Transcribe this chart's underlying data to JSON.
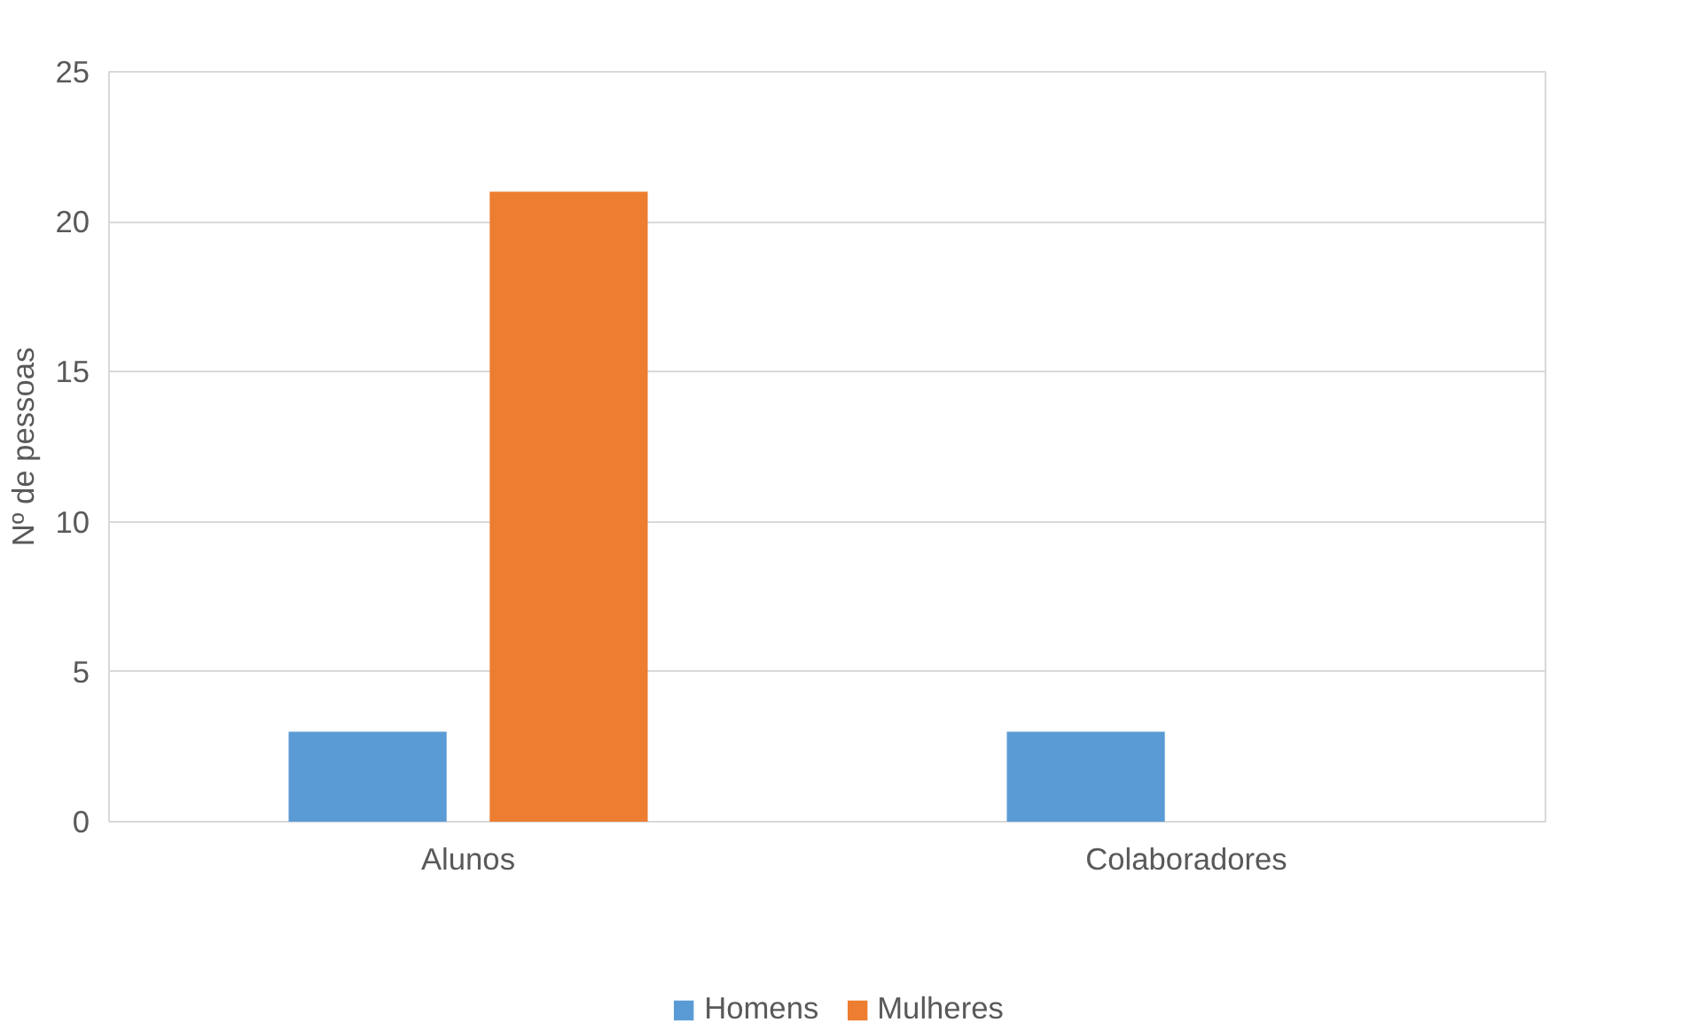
{
  "chart_data": {
    "type": "bar",
    "ylabel": "Nº de pessoas",
    "categories": [
      "Alunos",
      "Colaboradores"
    ],
    "series": [
      {
        "name": "Homens",
        "color": "#5b9bd5",
        "values": [
          3,
          3
        ]
      },
      {
        "name": "Mulheres",
        "color": "#ed7d31",
        "values": [
          21,
          0
        ]
      }
    ],
    "ylim": [
      0,
      25
    ],
    "yticks": [
      0,
      5,
      10,
      15,
      20,
      25
    ],
    "grid": "y",
    "legend": "bottom"
  }
}
